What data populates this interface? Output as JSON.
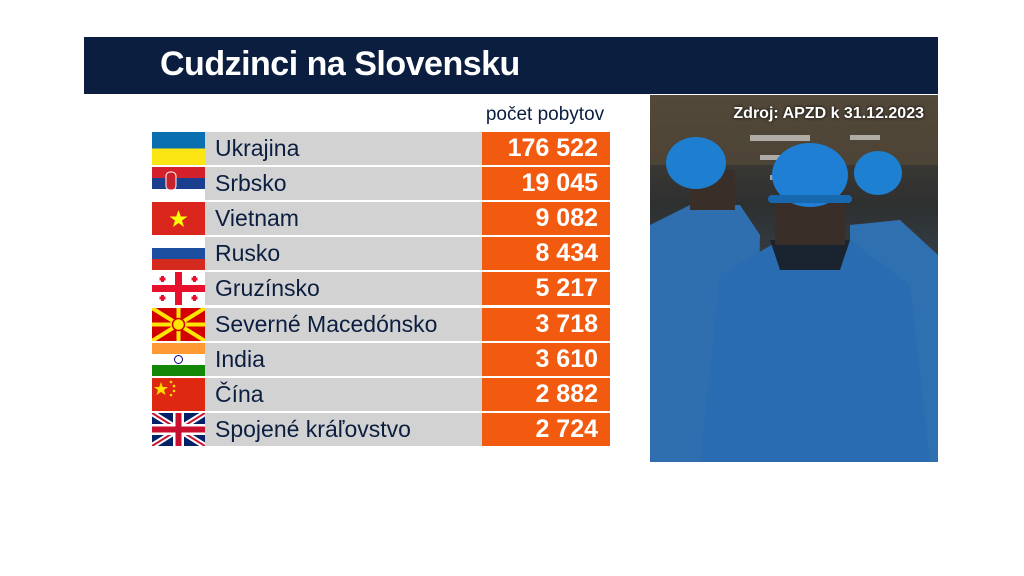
{
  "header": {
    "title": "Cudzinci na Slovensku"
  },
  "source": "Zdroj: APZD k 31.12.2023",
  "chart_data": {
    "type": "table",
    "column_header": "počet pobytov",
    "rows": [
      {
        "country": "Ukrajina",
        "flag": "ukraine-flag",
        "value": "176 522"
      },
      {
        "country": "Srbsko",
        "flag": "serbia-flag",
        "value": "19 045"
      },
      {
        "country": "Vietnam",
        "flag": "vietnam-flag",
        "value": "9 082"
      },
      {
        "country": "Rusko",
        "flag": "russia-flag",
        "value": "8 434"
      },
      {
        "country": "Gruzínsko",
        "flag": "georgia-flag",
        "value": "5 217"
      },
      {
        "country": "Severné Macedónsko",
        "flag": "north-macedonia-flag",
        "value": "3 718"
      },
      {
        "country": "India",
        "flag": "india-flag",
        "value": "3 610"
      },
      {
        "country": "Čína",
        "flag": "china-flag",
        "value": "2 882"
      },
      {
        "country": "Spojené kráľovstvo",
        "flag": "uk-flag",
        "value": "2 724"
      }
    ]
  },
  "colors": {
    "header": "#0b1e40",
    "value_bg": "#f15a0f",
    "name_bg": "#d2d2d2"
  }
}
